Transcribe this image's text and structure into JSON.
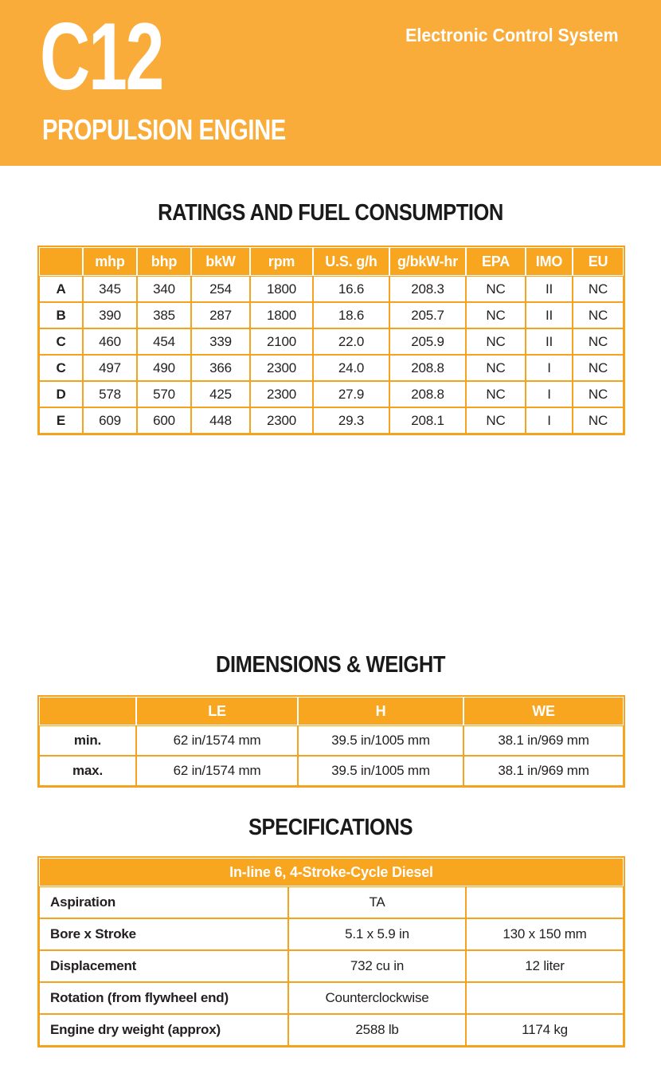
{
  "colors": {
    "banner_yellow": "#FAAC3B",
    "table_header_yellow": "#F8A51F",
    "table_border_yellow": "#F5A21E",
    "header_text": "#FFFFFF",
    "body_text": "#231F20"
  },
  "banner": {
    "model": "C12",
    "tagline": "Electronic Control System",
    "subtitle": "PROPULSION ENGINE"
  },
  "ratings": {
    "title": "RATINGS AND FUEL CONSUMPTION",
    "header": [
      "",
      "mhp",
      "bhp",
      "bkW",
      "rpm",
      "U.S. g/h",
      "g/bkW-hr",
      "EPA",
      "IMO",
      "EU"
    ],
    "rows": [
      [
        "A",
        "345",
        "340",
        "254",
        "1800",
        "16.6",
        "208.3",
        "NC",
        "II",
        "NC"
      ],
      [
        "B",
        "390",
        "385",
        "287",
        "1800",
        "18.6",
        "205.7",
        "NC",
        "II",
        "NC"
      ],
      [
        "C",
        "460",
        "454",
        "339",
        "2100",
        "22.0",
        "205.9",
        "NC",
        "II",
        "NC"
      ],
      [
        "C",
        "497",
        "490",
        "366",
        "2300",
        "24.0",
        "208.8",
        "NC",
        "I",
        "NC"
      ],
      [
        "D",
        "578",
        "570",
        "425",
        "2300",
        "27.9",
        "208.8",
        "NC",
        "I",
        "NC"
      ],
      [
        "E",
        "609",
        "600",
        "448",
        "2300",
        "29.3",
        "208.1",
        "NC",
        "I",
        "NC"
      ]
    ]
  },
  "dimensions": {
    "title": "DIMENSIONS & WEIGHT",
    "header": [
      "",
      "LE",
      "H",
      "WE"
    ],
    "rows": [
      [
        "min.",
        "62 in/1574 mm",
        "39.5 in/1005 mm",
        "38.1 in/969 mm"
      ],
      [
        "max.",
        "62 in/1574 mm",
        "39.5 in/1005 mm",
        "38.1 in/969 mm"
      ]
    ]
  },
  "specifications": {
    "title": "SPECIFICATIONS",
    "header": "In-line 6, 4-Stroke-Cycle Diesel",
    "rows": [
      [
        "Aspiration",
        "TA",
        ""
      ],
      [
        "Bore x Stroke",
        "5.1 x 5.9 in",
        "130 x 150 mm"
      ],
      [
        "Displacement",
        "732 cu in",
        "12 liter"
      ],
      [
        "Rotation (from flywheel end)",
        "Counterclockwise",
        ""
      ],
      [
        "Engine dry weight (approx)",
        "2588 lb",
        "1174 kg"
      ]
    ]
  }
}
